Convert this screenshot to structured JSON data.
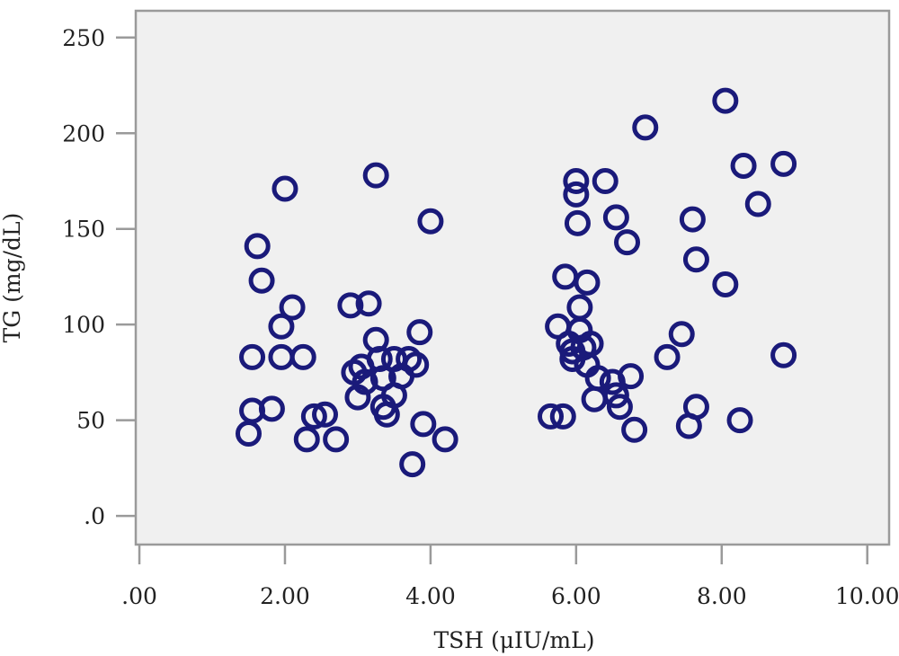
{
  "chart_data": {
    "type": "scatter",
    "xlabel": "TSH (μIU/mL)",
    "ylabel": "TG (mg/dL)",
    "xlim": [
      -0.05,
      10.3
    ],
    "ylim": [
      -15,
      264
    ],
    "x_ticks": [
      0,
      2,
      4,
      6,
      8,
      10
    ],
    "x_tick_labels": [
      ".00",
      "2.00",
      "4.00",
      "6.00",
      "8.00",
      "10.00"
    ],
    "y_ticks": [
      0,
      50,
      100,
      150,
      200,
      250
    ],
    "y_tick_labels": [
      ".0",
      "50",
      "100",
      "150",
      "200",
      "250"
    ],
    "grid": false,
    "legend": false,
    "colors": {
      "plot_background": "#f0f0f0",
      "frame": "#9a9a9a",
      "marker": "#1a1a7a"
    },
    "series": [
      {
        "marker": "open-circle",
        "points": [
          [
            1.5,
            43
          ],
          [
            1.55,
            55
          ],
          [
            1.55,
            83
          ],
          [
            1.62,
            141
          ],
          [
            1.68,
            123
          ],
          [
            1.82,
            56
          ],
          [
            1.95,
            99
          ],
          [
            2.0,
            171
          ],
          [
            1.95,
            83
          ],
          [
            2.1,
            109
          ],
          [
            2.25,
            83
          ],
          [
            2.3,
            40
          ],
          [
            2.4,
            52
          ],
          [
            2.55,
            53
          ],
          [
            2.7,
            40
          ],
          [
            2.9,
            110
          ],
          [
            2.95,
            75
          ],
          [
            3.0,
            62
          ],
          [
            3.05,
            78
          ],
          [
            3.1,
            70
          ],
          [
            3.15,
            111
          ],
          [
            3.25,
            178
          ],
          [
            3.25,
            92
          ],
          [
            3.3,
            82
          ],
          [
            3.35,
            72
          ],
          [
            3.35,
            57
          ],
          [
            3.4,
            53
          ],
          [
            3.5,
            63
          ],
          [
            3.5,
            82
          ],
          [
            3.6,
            73
          ],
          [
            3.7,
            82
          ],
          [
            3.75,
            27
          ],
          [
            3.8,
            79
          ],
          [
            3.85,
            96
          ],
          [
            3.9,
            48
          ],
          [
            4.0,
            154
          ],
          [
            4.2,
            40
          ],
          [
            5.65,
            52
          ],
          [
            5.75,
            99
          ],
          [
            5.82,
            52
          ],
          [
            5.85,
            125
          ],
          [
            5.9,
            90
          ],
          [
            5.95,
            86
          ],
          [
            5.95,
            82
          ],
          [
            6.0,
            175
          ],
          [
            6.0,
            168
          ],
          [
            6.02,
            153
          ],
          [
            6.05,
            109
          ],
          [
            6.05,
            97
          ],
          [
            6.1,
            88
          ],
          [
            6.15,
            122
          ],
          [
            6.15,
            79
          ],
          [
            6.2,
            90
          ],
          [
            6.25,
            61
          ],
          [
            6.3,
            72
          ],
          [
            6.4,
            175
          ],
          [
            6.5,
            70
          ],
          [
            6.55,
            156
          ],
          [
            6.55,
            63
          ],
          [
            6.6,
            57
          ],
          [
            6.7,
            143
          ],
          [
            6.75,
            73
          ],
          [
            6.8,
            45
          ],
          [
            6.95,
            203
          ],
          [
            7.25,
            83
          ],
          [
            7.45,
            95
          ],
          [
            7.55,
            47
          ],
          [
            7.6,
            155
          ],
          [
            7.65,
            57
          ],
          [
            7.65,
            134
          ],
          [
            8.05,
            217
          ],
          [
            8.05,
            121
          ],
          [
            8.25,
            50
          ],
          [
            8.3,
            183
          ],
          [
            8.5,
            163
          ],
          [
            8.85,
            184
          ],
          [
            8.85,
            84
          ]
        ]
      }
    ]
  }
}
